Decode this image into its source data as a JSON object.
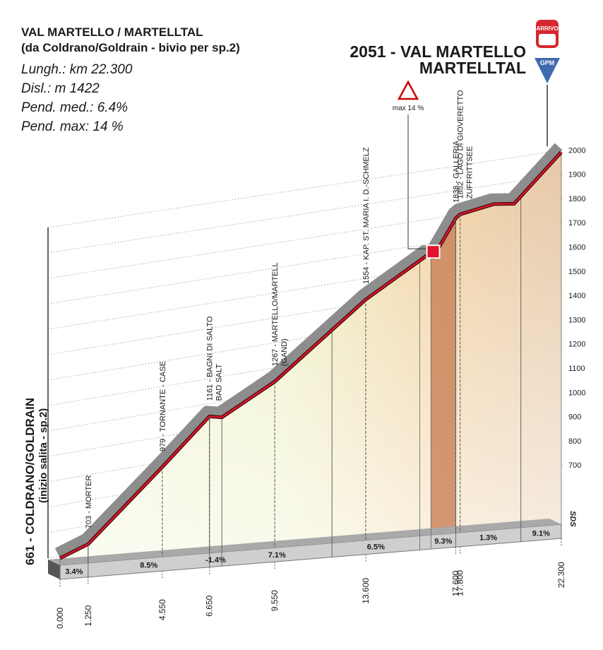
{
  "header": {
    "title": "VAL MARTELLO / MARTELLTAL",
    "subtitle": "(da Coldrano/Goldrain - bivio per sp.2)",
    "stats": [
      "Lungh.: km 22.300",
      "Disl.: m 1422",
      "Pend. med.: 6.4%",
      "Pend. max: 14 %"
    ]
  },
  "start": {
    "label": "661 - COLDRANO/GOLDRAIN",
    "sublabel": "(inizio salita - sp.2)"
  },
  "finish": {
    "label": "2051 - VAL MARTELLO",
    "sublabel": "MARTELLTAL",
    "arrivo": "ARRIVO",
    "gpm": "GPM"
  },
  "max_gradient": {
    "x": 16.6,
    "label": "max 14 %"
  },
  "logo": "SDS",
  "chart_data": {
    "type": "area",
    "x": [
      0,
      1.25,
      4.55,
      6.65,
      7.2,
      9.55,
      13.6,
      16.3,
      16.6,
      17.6,
      17.8,
      19.3,
      20.2,
      22.3
    ],
    "values": [
      661,
      703,
      979,
      1161,
      1150,
      1267,
      1554,
      1700,
      1690,
      1838,
      1852,
      1875,
      1865,
      2051
    ],
    "xlim": [
      0,
      22.3
    ],
    "ylim": [
      600,
      2100
    ],
    "yticks": [
      700,
      800,
      900,
      1000,
      1100,
      1200,
      1300,
      1400,
      1500,
      1600,
      1700,
      1800,
      1900,
      2000
    ],
    "xticks": [
      {
        "value": 0,
        "label": "0.000"
      },
      {
        "value": 1.25,
        "label": "1.250"
      },
      {
        "value": 4.55,
        "label": "4.550"
      },
      {
        "value": 6.65,
        "label": "6.650"
      },
      {
        "value": 9.55,
        "label": "9.550"
      },
      {
        "value": 13.6,
        "label": "13.600"
      },
      {
        "value": 17.6,
        "label": "17.600"
      },
      {
        "value": 17.8,
        "label": "17.800"
      },
      {
        "value": 22.3,
        "label": "22.300"
      }
    ],
    "grid": true,
    "waypoints": [
      {
        "x": 1.25,
        "label": "703 - MORTER"
      },
      {
        "x": 4.55,
        "label": "979 - TORNANTE - CASE"
      },
      {
        "x": 6.65,
        "label": "1161 - BAGNI DI SALTO",
        "sublabel": "BAD SALT"
      },
      {
        "x": 9.55,
        "label": "1267 - MARTELLO/MARTELL",
        "sublabel": "(GAND)"
      },
      {
        "x": 13.6,
        "label": "1554 - KAP. ST. MARIA I. D.-SCHMELZ"
      },
      {
        "x": 17.6,
        "label": "1838 - GALLERIA"
      },
      {
        "x": 17.8,
        "label": "1852 - LAGO DI GIOVERETTO",
        "sublabel": "ZUFFRITTSEE"
      }
    ],
    "gradient_segments": {
      "starts": [
        0,
        1.25,
        6.65,
        7.2,
        12.1,
        16.5,
        17.6,
        20.5
      ],
      "ends": [
        1.25,
        6.65,
        7.2,
        12.1,
        16.0,
        17.6,
        20.5,
        22.3
      ],
      "values": [
        3.4,
        8.5,
        -1.4,
        7.1,
        6.5,
        9.3,
        1.3,
        9.1
      ],
      "value_labels": [
        "3.4%",
        "8.5%",
        "-1.4%",
        "7.1%",
        "6.5%",
        "9.3%",
        "1.3%",
        "9.1%"
      ]
    }
  }
}
